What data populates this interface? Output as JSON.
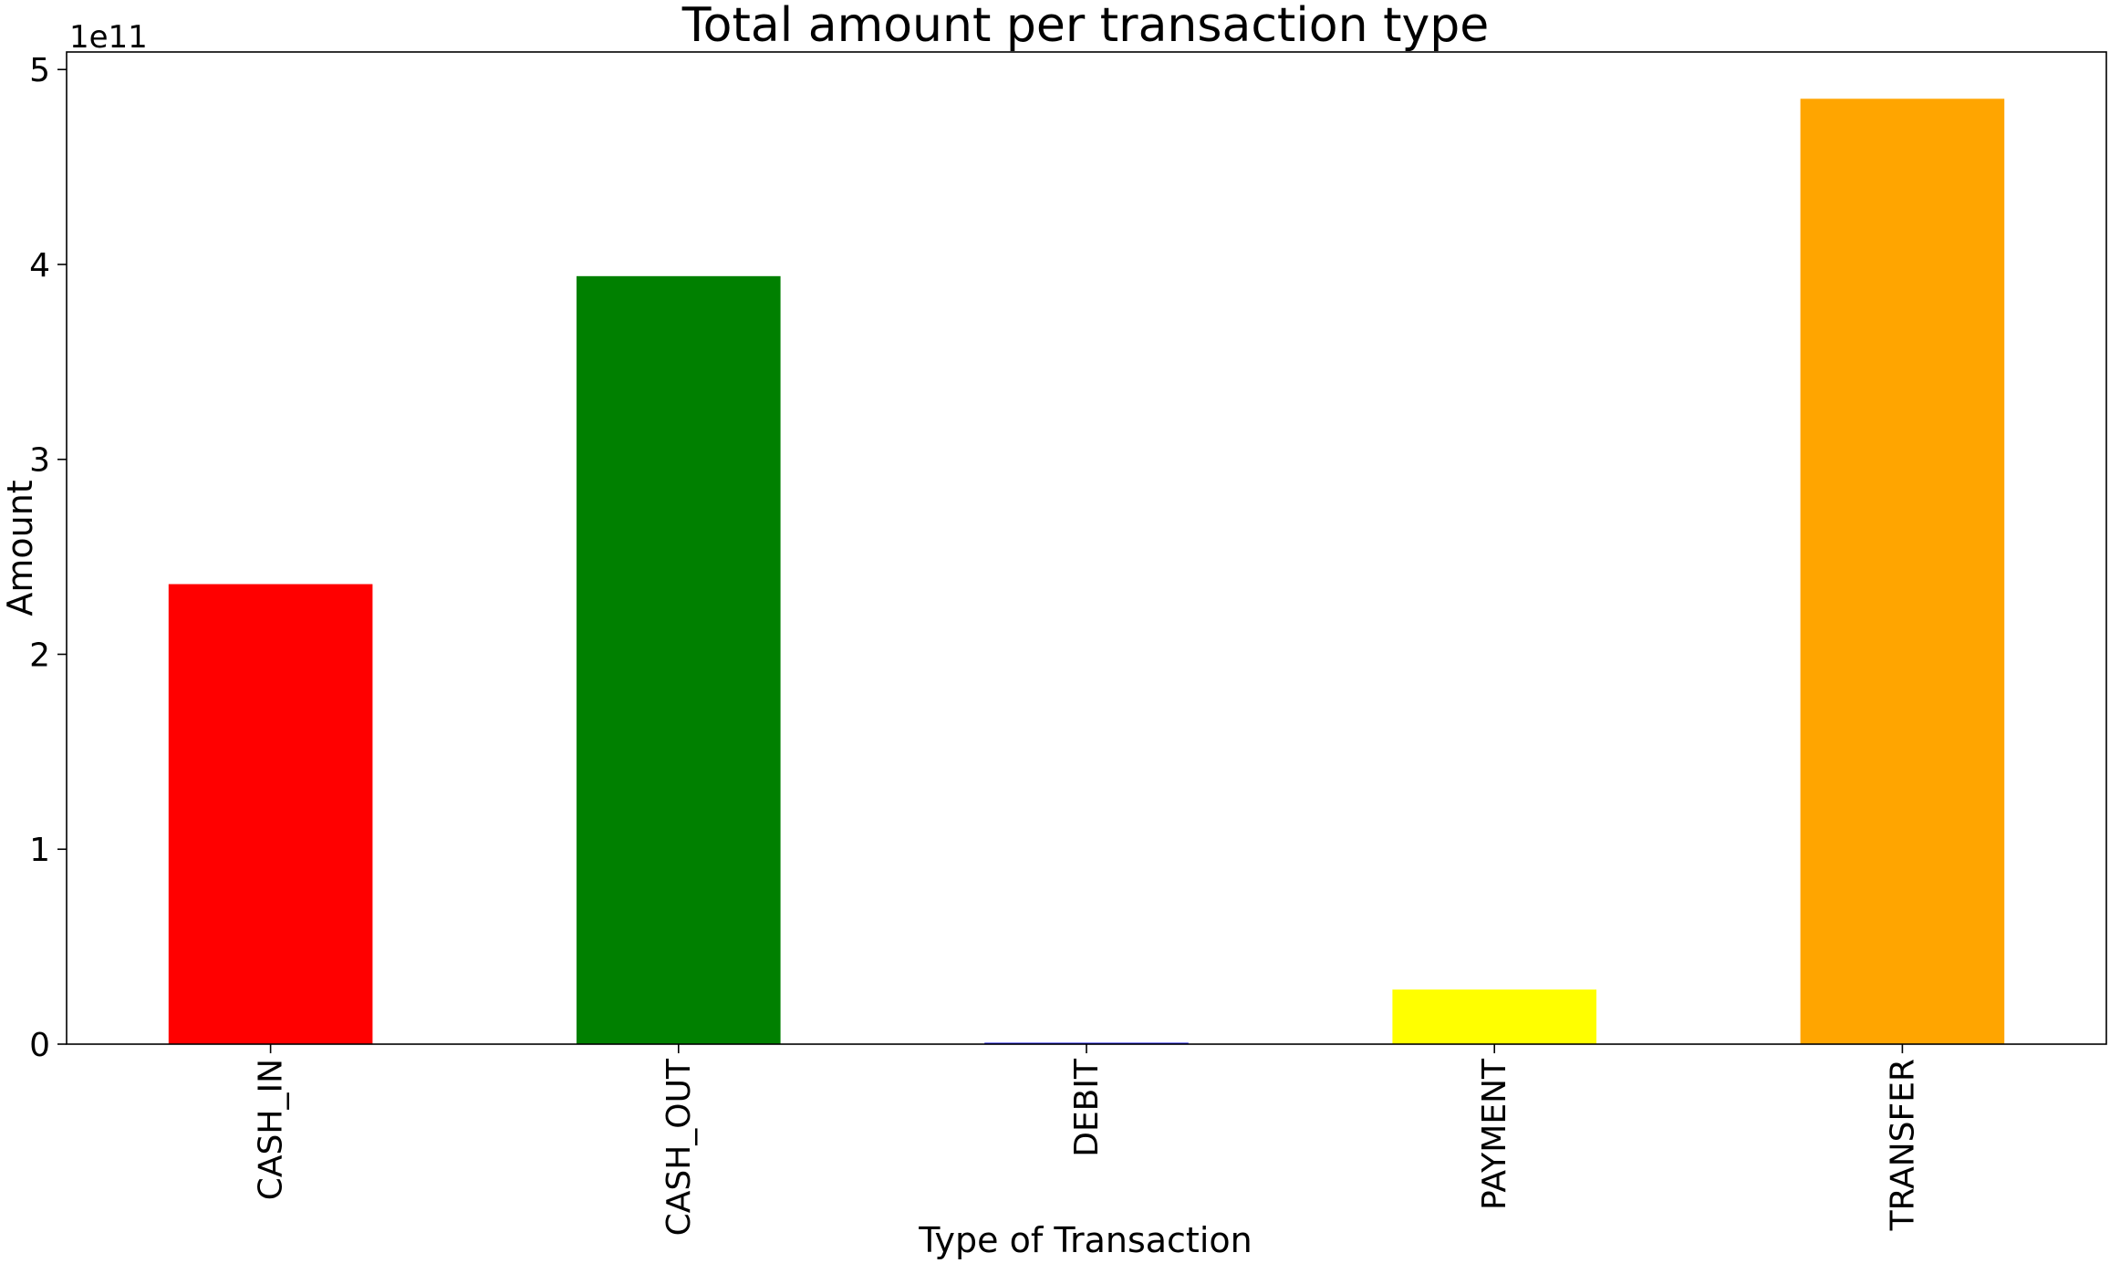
{
  "chart_data": {
    "type": "bar",
    "title": "Total amount per transaction type",
    "xlabel": "Type of Transaction",
    "ylabel": "Amount",
    "y_offset_label": "1e11",
    "y_scale_factor": 100000000000,
    "categories": [
      "CASH_IN",
      "CASH_OUT",
      "DEBIT",
      "PAYMENT",
      "TRANSFER"
    ],
    "values": [
      236000000000,
      394000000000,
      227000000,
      28000000000,
      485000000000
    ],
    "colors": [
      "#ff0000",
      "#008000",
      "#0000ff",
      "#ffff00",
      "#ffa500"
    ],
    "ylim": [
      0,
      509000000000
    ],
    "yticks": [
      0,
      1,
      2,
      3,
      4,
      5
    ],
    "grid": false,
    "legend": "none"
  }
}
